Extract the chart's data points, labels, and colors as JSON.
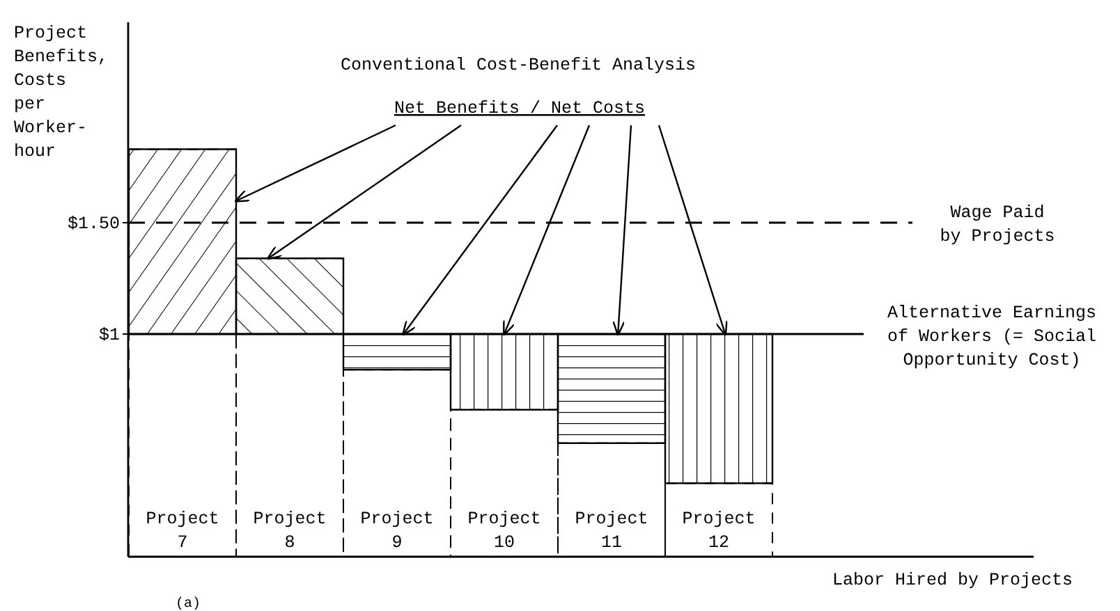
{
  "chart_data": {
    "type": "bar",
    "title": "Conventional Cost-Benefit Analysis",
    "ylabel": "Project Benefits, Costs per Worker-hour",
    "xlabel": "Labor Hired by Projects",
    "categories": [
      "Project 7",
      "Project 8",
      "Project 9",
      "Project 10",
      "Project 11",
      "Project 12"
    ],
    "series": [
      {
        "color": "#000000",
        "line_style": "dashed",
        "base": [
          0,
          0,
          0,
          0,
          0,
          0
        ],
        "values": [
          1.83,
          1.34,
          0.84,
          0.66,
          0.51,
          0.33
        ]
      },
      {
        "color": "#000000",
        "base": [
          1,
          1,
          1,
          1,
          1,
          1
        ],
        "values": [
          0.83,
          0.34,
          -0.16,
          -0.34,
          -0.49,
          -0.67
        ]
      }
    ],
    "ylim": [
      0,
      2.4
    ],
    "yticks": [
      {
        "value": 1,
        "label": "$1"
      },
      {
        "value": 1.5,
        "label": "$1.50"
      }
    ],
    "ref_lines": [
      {
        "axis": "y",
        "value": 1.5,
        "label": "Wage Paid by Projects",
        "line_style": "dashed"
      },
      {
        "axis": "y",
        "value": 1,
        "label": "Alternative Earnings of Workers (= Social Opportunity Cost)",
        "line_style": "solid"
      }
    ],
    "annotations": [
      {
        "text": "Net Benefits / Net Costs",
        "x": "Project 10",
        "y": 1
      },
      "(a)"
    ]
  }
}
